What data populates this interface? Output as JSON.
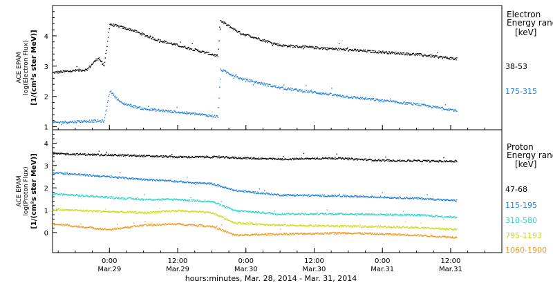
{
  "chart_data": {
    "type": "scatter",
    "xlabel": "hours:minutes, Mar. 28, 2014 - Mar. 31, 2014",
    "x_ticks": [
      {
        "time": "Mar.29 00:00",
        "top": "0:00",
        "bottom": "Mar.29"
      },
      {
        "time": "Mar.29 12:00",
        "top": "12:00",
        "bottom": "Mar.29"
      },
      {
        "time": "Mar.30 00:00",
        "top": "0:00",
        "bottom": "Mar.30"
      },
      {
        "time": "Mar.30 12:00",
        "top": "12:00",
        "bottom": "Mar.30"
      },
      {
        "time": "Mar.31 00:00",
        "top": "0:00",
        "bottom": "Mar.31"
      },
      {
        "time": "Mar.31 12:00",
        "top": "12:00",
        "bottom": "Mar.31"
      }
    ],
    "xlim": [
      "Mar.28 14:00",
      "Mar.31 21:00"
    ],
    "panels": [
      {
        "id": "electron",
        "ylabel": [
          "ACE EPAM",
          "log(Electron Flux)",
          "[1/(cm²s ster MeV)]"
        ],
        "ylim": [
          0.9,
          5.0
        ],
        "yticks": [
          "1",
          "2",
          "3",
          "4"
        ],
        "legend_title": [
          "Electron",
          "Energy range"
        ],
        "legend_unit": "[keV]",
        "series": [
          {
            "name": "38-53",
            "color": "#000000",
            "points": [
              [
                "Mar.28 14:00",
                2.8
              ],
              [
                "Mar.28 20:00",
                2.9
              ],
              [
                "Mar.28 22:00",
                3.3
              ],
              [
                "Mar.28 23:00",
                3.0
              ],
              [
                "Mar.29 00:00",
                4.4
              ],
              [
                "Mar.29 04:00",
                4.2
              ],
              [
                "Mar.29 08:00",
                3.9
              ],
              [
                "Mar.29 12:00",
                3.7
              ],
              [
                "Mar.29 16:00",
                3.5
              ],
              [
                "Mar.29 19:00",
                3.35
              ],
              [
                "Mar.29 19:30",
                4.5
              ],
              [
                "Mar.29 23:00",
                4.1
              ],
              [
                "Mar.30 06:00",
                3.7
              ],
              [
                "Mar.30 18:00",
                3.55
              ],
              [
                "Mar.31 06:00",
                3.4
              ],
              [
                "Mar.31 13:00",
                3.25
              ]
            ]
          },
          {
            "name": "175-315",
            "color": "#1e7fd8",
            "points": [
              [
                "Mar.28 14:00",
                1.15
              ],
              [
                "Mar.28 20:00",
                1.2
              ],
              [
                "Mar.28 23:00",
                1.2
              ],
              [
                "Mar.29 00:00",
                2.2
              ],
              [
                "Mar.29 02:00",
                1.8
              ],
              [
                "Mar.29 06:00",
                1.6
              ],
              [
                "Mar.29 12:00",
                1.5
              ],
              [
                "Mar.29 19:00",
                1.35
              ],
              [
                "Mar.29 19:30",
                2.9
              ],
              [
                "Mar.29 23:00",
                2.6
              ],
              [
                "Mar.30 06:00",
                2.3
              ],
              [
                "Mar.30 18:00",
                2.0
              ],
              [
                "Mar.31 06:00",
                1.75
              ],
              [
                "Mar.31 13:00",
                1.55
              ]
            ]
          }
        ]
      },
      {
        "id": "proton",
        "ylabel": [
          "ACE EPAM",
          "log(Proton Flux)",
          "[1/(cm²s ster MeV)]"
        ],
        "ylim": [
          -0.9,
          4.6
        ],
        "yticks": [
          "0",
          "1",
          "2",
          "3",
          "4"
        ],
        "legend_title": [
          "Proton",
          "Energy range"
        ],
        "legend_unit": "[keV]",
        "series": [
          {
            "name": "47-68",
            "color": "#000000",
            "points": [
              [
                "Mar.28 14:00",
                3.55
              ],
              [
                "Mar.29 06:00",
                3.45
              ],
              [
                "Mar.29 12:00",
                3.4
              ],
              [
                "Mar.29 18:00",
                3.4
              ],
              [
                "Mar.30 06:00",
                3.3
              ],
              [
                "Mar.30 15:00",
                3.35
              ],
              [
                "Mar.31 00:00",
                3.25
              ],
              [
                "Mar.31 13:00",
                3.2
              ]
            ]
          },
          {
            "name": "115-195",
            "color": "#1e7fd8",
            "points": [
              [
                "Mar.28 14:00",
                2.7
              ],
              [
                "Mar.29 06:00",
                2.4
              ],
              [
                "Mar.29 12:00",
                2.3
              ],
              [
                "Mar.29 18:00",
                2.2
              ],
              [
                "Mar.29 22:00",
                1.9
              ],
              [
                "Mar.30 06:00",
                1.7
              ],
              [
                "Mar.30 18:00",
                1.65
              ],
              [
                "Mar.31 06:00",
                1.55
              ],
              [
                "Mar.31 13:00",
                1.45
              ]
            ]
          },
          {
            "name": "310-580",
            "color": "#2ad2c9",
            "points": [
              [
                "Mar.28 14:00",
                1.75
              ],
              [
                "Mar.29 06:00",
                1.5
              ],
              [
                "Mar.29 12:00",
                1.5
              ],
              [
                "Mar.29 18:00",
                1.4
              ],
              [
                "Mar.29 22:00",
                1.0
              ],
              [
                "Mar.30 06:00",
                0.85
              ],
              [
                "Mar.30 18:00",
                0.85
              ],
              [
                "Mar.31 06:00",
                0.8
              ],
              [
                "Mar.31 13:00",
                0.7
              ]
            ]
          },
          {
            "name": "795-1193",
            "color": "#c8dc14",
            "points": [
              [
                "Mar.28 14:00",
                1.05
              ],
              [
                "Mar.29 06:00",
                0.9
              ],
              [
                "Mar.29 12:00",
                1.0
              ],
              [
                "Mar.29 18:00",
                0.9
              ],
              [
                "Mar.29 22:00",
                0.45
              ],
              [
                "Mar.30 06:00",
                0.35
              ],
              [
                "Mar.30 18:00",
                0.3
              ],
              [
                "Mar.31 06:00",
                0.25
              ],
              [
                "Mar.31 13:00",
                0.15
              ]
            ]
          },
          {
            "name": "1060-1900",
            "color": "#f0961e",
            "points": [
              [
                "Mar.28 14:00",
                0.4
              ],
              [
                "Mar.29 00:00",
                0.15
              ],
              [
                "Mar.29 06:00",
                0.35
              ],
              [
                "Mar.29 12:00",
                0.4
              ],
              [
                "Mar.29 18:00",
                0.3
              ],
              [
                "Mar.29 22:00",
                -0.1
              ],
              [
                "Mar.30 06:00",
                -0.05
              ],
              [
                "Mar.30 18:00",
                0.0
              ],
              [
                "Mar.31 06:00",
                -0.1
              ],
              [
                "Mar.31 13:00",
                -0.2
              ]
            ]
          }
        ]
      }
    ]
  }
}
